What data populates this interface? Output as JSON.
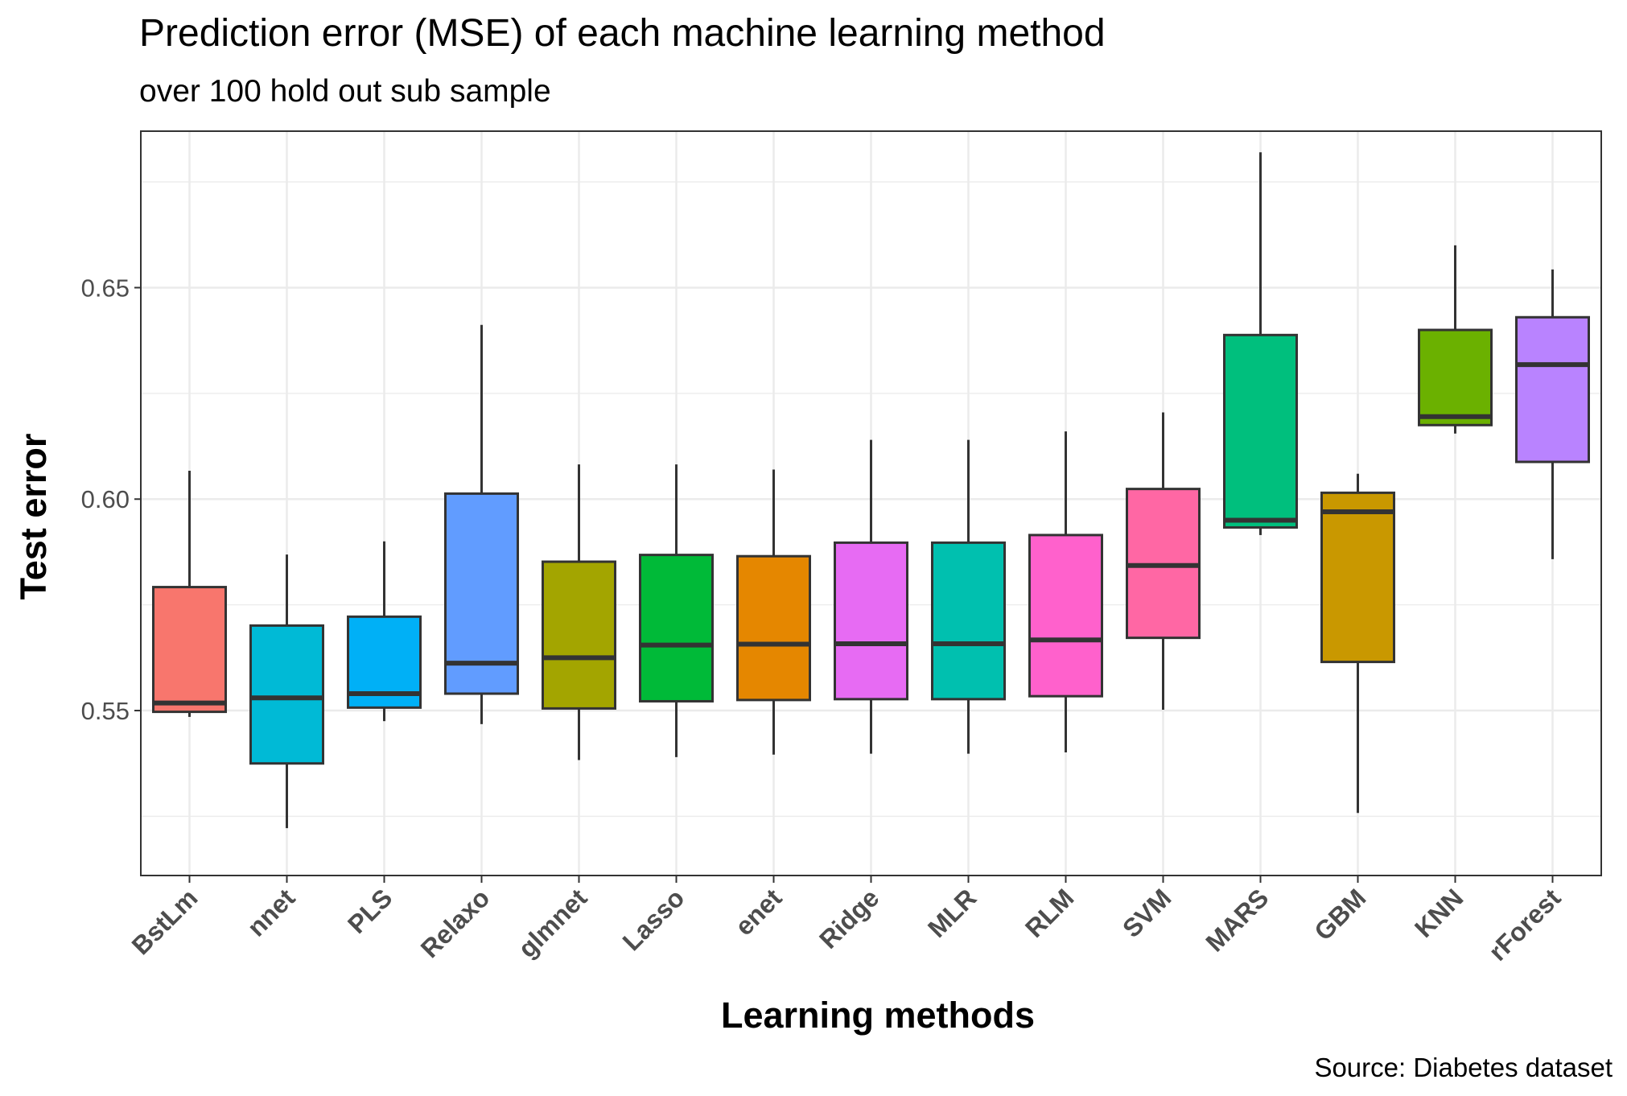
{
  "chart_data": {
    "type": "boxplot",
    "title": "Prediction error (MSE) of each machine learning method",
    "subtitle": "over 100 hold out sub sample",
    "xlabel": "Learning methods",
    "ylabel": "Test error",
    "caption": "Source: Diabetes dataset",
    "ylim": [
      0.511,
      0.687
    ],
    "yticks": [
      0.55,
      0.6,
      0.65
    ],
    "ytick_labels": [
      "0.55",
      "0.60",
      "0.65"
    ],
    "grid": true,
    "categories": [
      "BstLm",
      "nnet",
      "PLS",
      "Relaxo",
      "glmnet",
      "Lasso",
      "enet",
      "Ridge",
      "MLR",
      "RLM",
      "SVM",
      "MARS",
      "GBM",
      "KNN",
      "rForest"
    ],
    "boxes": [
      {
        "name": "BstLm",
        "min": 0.5485,
        "q1": 0.5497,
        "median": 0.5518,
        "q3": 0.5792,
        "max": 0.6067,
        "color": "#F8766D"
      },
      {
        "name": "nnet",
        "min": 0.5222,
        "q1": 0.5375,
        "median": 0.553,
        "q3": 0.5701,
        "max": 0.5869,
        "color": "#00BAD6"
      },
      {
        "name": "PLS",
        "min": 0.5475,
        "q1": 0.5507,
        "median": 0.554,
        "q3": 0.5722,
        "max": 0.59,
        "color": "#00B0F6"
      },
      {
        "name": "Relaxo",
        "min": 0.5468,
        "q1": 0.554,
        "median": 0.5612,
        "q3": 0.6013,
        "max": 0.6412,
        "color": "#619CFF"
      },
      {
        "name": "glmnet",
        "min": 0.5383,
        "q1": 0.5505,
        "median": 0.5625,
        "q3": 0.5852,
        "max": 0.6082,
        "color": "#A3A500"
      },
      {
        "name": "Lasso",
        "min": 0.539,
        "q1": 0.5522,
        "median": 0.5655,
        "q3": 0.5868,
        "max": 0.6082,
        "color": "#00BA38"
      },
      {
        "name": "enet",
        "min": 0.5396,
        "q1": 0.5525,
        "median": 0.5657,
        "q3": 0.5865,
        "max": 0.607,
        "color": "#E58700"
      },
      {
        "name": "Ridge",
        "min": 0.5398,
        "q1": 0.5527,
        "median": 0.5658,
        "q3": 0.5897,
        "max": 0.614,
        "color": "#E76BF3"
      },
      {
        "name": "MLR",
        "min": 0.5398,
        "q1": 0.5527,
        "median": 0.5658,
        "q3": 0.5897,
        "max": 0.614,
        "color": "#00C0AF"
      },
      {
        "name": "RLM",
        "min": 0.5401,
        "q1": 0.5534,
        "median": 0.5667,
        "q3": 0.5915,
        "max": 0.616,
        "color": "#FF61CC"
      },
      {
        "name": "SVM",
        "min": 0.5502,
        "q1": 0.5672,
        "median": 0.5843,
        "q3": 0.6024,
        "max": 0.6205,
        "color": "#FF67A4"
      },
      {
        "name": "MARS",
        "min": 0.5915,
        "q1": 0.5933,
        "median": 0.595,
        "q3": 0.6388,
        "max": 0.682,
        "color": "#00BF7D"
      },
      {
        "name": "GBM",
        "min": 0.5258,
        "q1": 0.5615,
        "median": 0.597,
        "q3": 0.6015,
        "max": 0.606,
        "color": "#C99800"
      },
      {
        "name": "KNN",
        "min": 0.6155,
        "q1": 0.6175,
        "median": 0.6195,
        "q3": 0.64,
        "max": 0.66,
        "color": "#6BB100"
      },
      {
        "name": "rForest",
        "min": 0.5858,
        "q1": 0.6088,
        "median": 0.6318,
        "q3": 0.643,
        "max": 0.6543,
        "color": "#B983FF"
      }
    ]
  }
}
